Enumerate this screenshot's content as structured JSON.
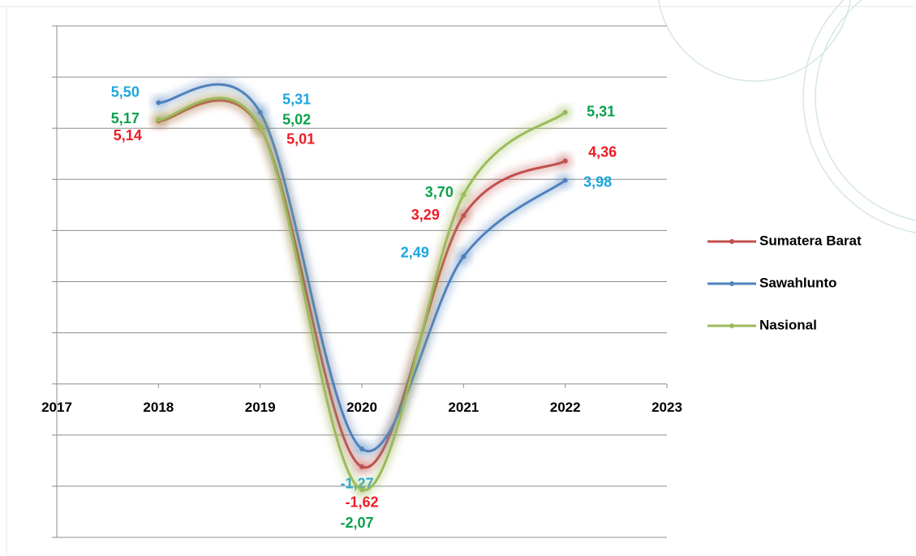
{
  "chart_data": {
    "type": "line",
    "x": [
      2018,
      2019,
      2020,
      2021,
      2022
    ],
    "xlim": [
      2017,
      2023
    ],
    "xticks": [
      2017,
      2018,
      2019,
      2020,
      2021,
      2022,
      2023
    ],
    "ylim": [
      -3,
      7
    ],
    "yticks": [
      -3,
      -2,
      -1,
      0,
      1,
      2,
      3,
      4,
      5,
      6,
      7
    ],
    "grid": true,
    "legend": "right",
    "series": [
      {
        "name": "Sumatera Barat",
        "color": "#c0504d",
        "label_color": "#ee1c25",
        "values": [
          5.14,
          5.01,
          -1.62,
          3.29,
          4.36
        ],
        "value_labels": [
          "5,14",
          "5,01",
          "-1,62",
          "3,29",
          "4,36"
        ]
      },
      {
        "name": "Sawahlunto",
        "color": "#4f81bd",
        "label_color": "#1ba6e0",
        "values": [
          5.5,
          5.31,
          -1.27,
          2.49,
          3.98
        ],
        "value_labels": [
          "5,50",
          "5,31",
          "-1,27",
          "2,49",
          "3,98"
        ]
      },
      {
        "name": "Nasional",
        "color": "#9bbb59",
        "label_color": "#0aa14b",
        "values": [
          5.17,
          5.02,
          -2.07,
          3.7,
          5.31
        ],
        "value_labels": [
          "5,17",
          "5,02",
          "-2,07",
          "3,70",
          "5,31"
        ]
      }
    ]
  }
}
